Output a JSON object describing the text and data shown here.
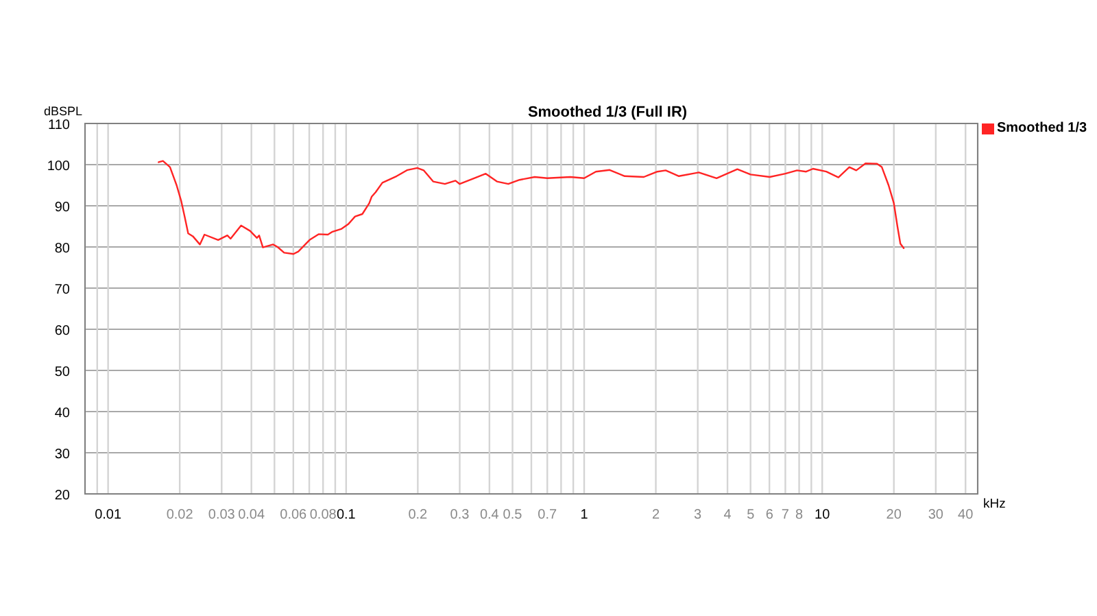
{
  "chart_data": {
    "type": "line",
    "title": "Smoothed 1/3 (Full IR)",
    "xlabel": "kHz",
    "ylabel": "dBSPL",
    "x": [
      0.0163,
      0.017,
      0.0182,
      0.0194,
      0.0203,
      0.021,
      0.0217,
      0.0227,
      0.0243,
      0.0254,
      0.029,
      0.0317,
      0.0327,
      0.0362,
      0.0395,
      0.0422,
      0.0431,
      0.0447,
      0.0493,
      0.0515,
      0.0549,
      0.0601,
      0.063,
      0.0702,
      0.0766,
      0.0838,
      0.0876,
      0.0957,
      0.1023,
      0.109,
      0.117,
      0.125,
      0.128,
      0.133,
      0.142,
      0.163,
      0.181,
      0.199,
      0.212,
      0.232,
      0.26,
      0.288,
      0.3,
      0.345,
      0.386,
      0.43,
      0.48,
      0.535,
      0.62,
      0.7,
      0.875,
      1.0,
      1.12,
      1.28,
      1.48,
      1.78,
      2.03,
      2.2,
      2.5,
      3.03,
      3.6,
      4.4,
      5.0,
      6.02,
      7.0,
      7.84,
      8.56,
      9.15,
      10.4,
      11.7,
      13.0,
      13.9,
      15.2,
      17.0,
      17.8,
      19.0,
      20.0,
      20.7,
      21.3,
      22.0
    ],
    "series": [
      {
        "name": "Smoothed 1/3",
        "color": "#ff2424",
        "values": [
          100.6,
          100.9,
          99.4,
          95.0,
          91.1,
          87.2,
          83.3,
          82.6,
          80.6,
          83.0,
          81.7,
          82.8,
          82.0,
          85.2,
          83.9,
          82.2,
          82.8,
          79.9,
          80.6,
          80.0,
          78.6,
          78.3,
          78.9,
          81.7,
          83.1,
          83.0,
          83.7,
          84.4,
          85.6,
          87.4,
          88.0,
          90.6,
          92.2,
          93.3,
          95.6,
          97.2,
          98.7,
          99.2,
          98.6,
          95.9,
          95.3,
          96.1,
          95.3,
          96.7,
          97.8,
          95.9,
          95.3,
          96.3,
          97.0,
          96.7,
          97.0,
          96.7,
          98.3,
          98.7,
          97.2,
          97.0,
          98.3,
          98.6,
          97.2,
          98.1,
          96.7,
          98.9,
          97.6,
          97.0,
          97.8,
          98.6,
          98.3,
          99.0,
          98.3,
          96.9,
          99.4,
          98.6,
          100.3,
          100.2,
          99.4,
          95.0,
          90.6,
          85.0,
          80.8,
          79.7
        ]
      }
    ],
    "xlim": [
      0.008,
      45
    ],
    "xticks": [
      {
        "value": 0.009,
        "label": null
      },
      0.01,
      0.02,
      0.03,
      0.04,
      {
        "value": 0.05,
        "label": null
      },
      0.06,
      {
        "value": 0.07,
        "label": null
      },
      0.08,
      {
        "value": 0.09,
        "label": null
      },
      0.1,
      0.2,
      0.3,
      0.4,
      0.5,
      {
        "value": 0.6,
        "label": null
      },
      0.7,
      {
        "value": 0.8,
        "label": null
      },
      {
        "value": 0.9,
        "label": null
      },
      1,
      2,
      3,
      4,
      5,
      6,
      7,
      8,
      {
        "value": 9,
        "label": null
      },
      10,
      20,
      30,
      40
    ],
    "ylim": [
      20,
      110
    ],
    "yticks": [
      20,
      30,
      40,
      50,
      60,
      70,
      80,
      90,
      100,
      110
    ],
    "log": "x",
    "grid": true,
    "legend": "top right",
    "marker": "none",
    "line_style": "solid"
  }
}
